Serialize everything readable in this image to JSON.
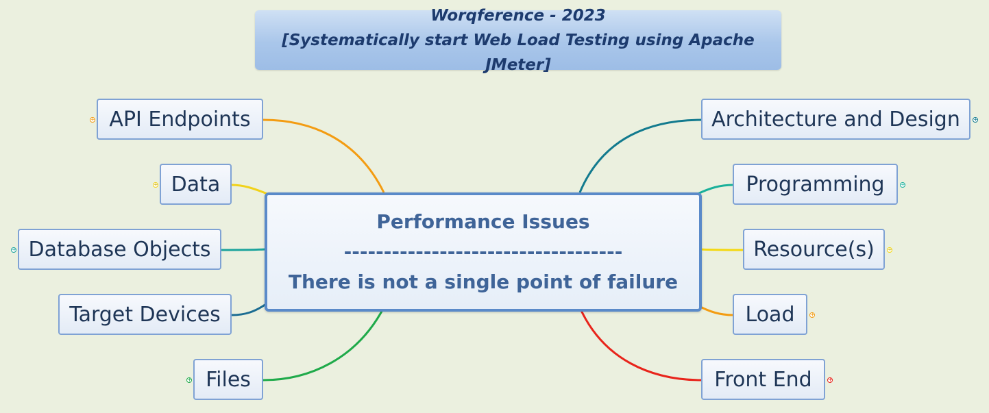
{
  "title": {
    "line1": "Worqference - 2023",
    "line2": "[Systematically start Web Load Testing using Apache JMeter]"
  },
  "center": {
    "line1": "Performance Issues",
    "line2": "-----------------------------------",
    "line3": "There is not a single point of failure"
  },
  "left_topics": [
    {
      "label": "API Endpoints",
      "color": "#f39c12"
    },
    {
      "label": "Data",
      "color": "#f1d21a"
    },
    {
      "label": "Database Objects",
      "color": "#1ba39c"
    },
    {
      "label": "Target Devices",
      "color": "#1b6c92"
    },
    {
      "label": "Files",
      "color": "#1faa4a"
    }
  ],
  "right_topics": [
    {
      "label": "Architecture and Design",
      "color": "#127a8e"
    },
    {
      "label": "Programming",
      "color": "#19b09a"
    },
    {
      "label": "Resource(s)",
      "color": "#f4d80f"
    },
    {
      "label": "Load",
      "color": "#f39c12"
    },
    {
      "label": "Front End",
      "color": "#e8241b"
    }
  ],
  "expander_symbol": "+"
}
